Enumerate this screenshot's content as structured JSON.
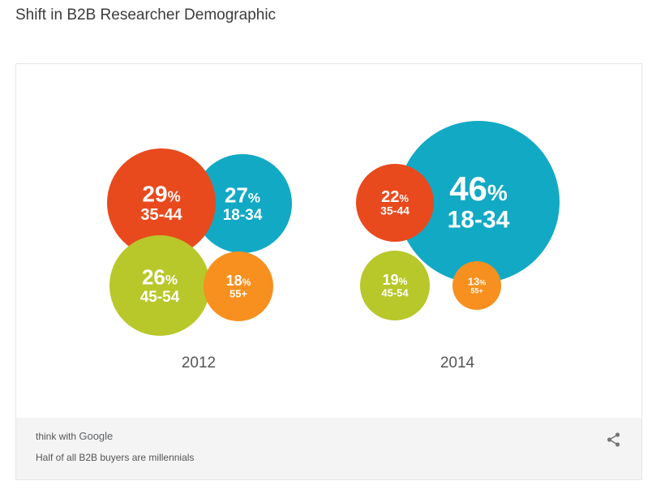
{
  "page": {
    "title": "Shift in B2B Researcher Demographic"
  },
  "footer": {
    "brand_prefix": "think with ",
    "brand_name": "Google",
    "caption": "Half of all B2B buyers are millennials",
    "share_icon": "share-icon"
  },
  "colors": {
    "orange_red": "#e84a1e",
    "teal": "#12a9c5",
    "lime": "#b8c72a",
    "orange": "#f7901e"
  },
  "chart_data": {
    "type": "bubble",
    "title": "",
    "groups": [
      {
        "label": "2012",
        "bubbles": [
          {
            "age_group": "35-44",
            "value": 29,
            "value_label": "29",
            "unit": "%",
            "color": "#e84a1e"
          },
          {
            "age_group": "18-34",
            "value": 27,
            "value_label": "27",
            "unit": "%",
            "color": "#12a9c5"
          },
          {
            "age_group": "45-54",
            "value": 26,
            "value_label": "26",
            "unit": "%",
            "color": "#b8c72a"
          },
          {
            "age_group": "55+",
            "value": 18,
            "value_label": "18",
            "unit": "%",
            "color": "#f7901e"
          }
        ]
      },
      {
        "label": "2014",
        "bubbles": [
          {
            "age_group": "35-44",
            "value": 22,
            "value_label": "22",
            "unit": "%",
            "color": "#e84a1e"
          },
          {
            "age_group": "18-34",
            "value": 46,
            "value_label": "46",
            "unit": "%",
            "color": "#12a9c5"
          },
          {
            "age_group": "45-54",
            "value": 19,
            "value_label": "19",
            "unit": "%",
            "color": "#b8c72a"
          },
          {
            "age_group": "55+",
            "value": 13,
            "value_label": "13",
            "unit": "%",
            "color": "#f7901e"
          }
        ]
      }
    ]
  }
}
